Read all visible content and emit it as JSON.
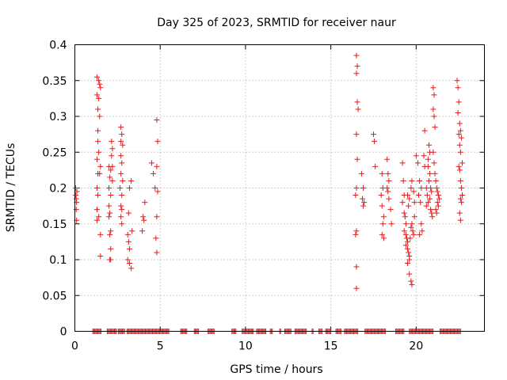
{
  "chart_data": {
    "type": "scatter",
    "title": "Day 325 of 2023, SRMTID for receiver naur",
    "xlabel": "GPS time / hours",
    "ylabel": "SRMTID / TECUs",
    "xlim": [
      0,
      24
    ],
    "ylim": [
      0,
      0.4
    ],
    "xticks": [
      0,
      5,
      10,
      15,
      20
    ],
    "xtick_labels": [
      "0",
      "5",
      "10",
      "15",
      "20"
    ],
    "yticks": [
      0,
      0.05,
      0.1,
      0.15,
      0.2,
      0.25,
      0.3,
      0.35,
      0.4
    ],
    "ytick_labels": [
      "0",
      "0.05",
      "0.1",
      "0.15",
      "0.2",
      "0.25",
      "0.3",
      "0.35",
      "0.4"
    ],
    "grid": true,
    "marker": "+",
    "color": "#e41a1c",
    "series": [
      {
        "name": "SRMTID",
        "points": [
          [
            0.05,
            0.19
          ],
          [
            0.05,
            0.2
          ],
          [
            0.08,
            0.185
          ],
          [
            0.08,
            0.17
          ],
          [
            0.1,
            0.155
          ],
          [
            0.1,
            0.18
          ],
          [
            0.12,
            0.195
          ],
          [
            1.3,
            0.355
          ],
          [
            1.3,
            0.33
          ],
          [
            1.35,
            0.31
          ],
          [
            1.35,
            0.28
          ],
          [
            1.4,
            0.35
          ],
          [
            1.45,
            0.345
          ],
          [
            1.5,
            0.34
          ],
          [
            1.4,
            0.325
          ],
          [
            1.45,
            0.3
          ],
          [
            1.35,
            0.265
          ],
          [
            1.4,
            0.25
          ],
          [
            1.3,
            0.24
          ],
          [
            1.35,
            0.22
          ],
          [
            1.3,
            0.2
          ],
          [
            1.35,
            0.19
          ],
          [
            1.3,
            0.17
          ],
          [
            1.4,
            0.16
          ],
          [
            1.3,
            0.155
          ],
          [
            1.5,
            0.135
          ],
          [
            1.5,
            0.105
          ],
          [
            1.45,
            0.22
          ],
          [
            1.5,
            0.23
          ],
          [
            2.0,
            0.23
          ],
          [
            2.05,
            0.215
          ],
          [
            2.0,
            0.2
          ],
          [
            2.1,
            0.19
          ],
          [
            2.0,
            0.175
          ],
          [
            2.05,
            0.165
          ],
          [
            2.0,
            0.16
          ],
          [
            2.1,
            0.14
          ],
          [
            2.05,
            0.135
          ],
          [
            2.1,
            0.115
          ],
          [
            2.05,
            0.1
          ],
          [
            2.1,
            0.1
          ],
          [
            2.15,
            0.265
          ],
          [
            2.2,
            0.255
          ],
          [
            2.15,
            0.245
          ],
          [
            2.2,
            0.23
          ],
          [
            2.1,
            0.225
          ],
          [
            2.2,
            0.21
          ],
          [
            2.7,
            0.285
          ],
          [
            2.75,
            0.275
          ],
          [
            2.7,
            0.265
          ],
          [
            2.8,
            0.26
          ],
          [
            2.7,
            0.245
          ],
          [
            2.75,
            0.235
          ],
          [
            2.7,
            0.22
          ],
          [
            2.8,
            0.21
          ],
          [
            2.65,
            0.2
          ],
          [
            2.75,
            0.19
          ],
          [
            2.7,
            0.175
          ],
          [
            2.75,
            0.17
          ],
          [
            2.7,
            0.16
          ],
          [
            2.75,
            0.15
          ],
          [
            3.1,
            0.135
          ],
          [
            3.15,
            0.125
          ],
          [
            3.2,
            0.115
          ],
          [
            3.1,
            0.1
          ],
          [
            3.2,
            0.095
          ],
          [
            3.3,
            0.088
          ],
          [
            3.15,
            0.165
          ],
          [
            3.2,
            0.2
          ],
          [
            3.3,
            0.21
          ],
          [
            3.35,
            0.14
          ],
          [
            4.0,
            0.16
          ],
          [
            4.05,
            0.155
          ],
          [
            3.95,
            0.14
          ],
          [
            4.1,
            0.18
          ],
          [
            4.5,
            0.235
          ],
          [
            4.6,
            0.22
          ],
          [
            4.7,
            0.2
          ],
          [
            4.75,
            0.13
          ],
          [
            4.8,
            0.23
          ],
          [
            4.8,
            0.16
          ],
          [
            4.85,
            0.195
          ],
          [
            4.8,
            0.11
          ],
          [
            4.8,
            0.295
          ],
          [
            4.85,
            0.265
          ],
          [
            16.5,
            0.385
          ],
          [
            16.55,
            0.37
          ],
          [
            16.5,
            0.36
          ],
          [
            16.55,
            0.32
          ],
          [
            16.6,
            0.31
          ],
          [
            16.5,
            0.275
          ],
          [
            16.55,
            0.24
          ],
          [
            16.5,
            0.2
          ],
          [
            16.45,
            0.19
          ],
          [
            16.5,
            0.14
          ],
          [
            16.45,
            0.135
          ],
          [
            16.5,
            0.09
          ],
          [
            16.5,
            0.06
          ],
          [
            16.8,
            0.22
          ],
          [
            16.9,
            0.2
          ],
          [
            16.95,
            0.18
          ],
          [
            16.85,
            0.185
          ],
          [
            16.9,
            0.175
          ],
          [
            17.6,
            0.23
          ],
          [
            17.5,
            0.275
          ],
          [
            17.55,
            0.265
          ],
          [
            18.0,
            0.22
          ],
          [
            18.05,
            0.2
          ],
          [
            17.95,
            0.19
          ],
          [
            18.0,
            0.175
          ],
          [
            18.1,
            0.16
          ],
          [
            18.05,
            0.15
          ],
          [
            18.0,
            0.135
          ],
          [
            18.1,
            0.13
          ],
          [
            18.3,
            0.24
          ],
          [
            18.35,
            0.22
          ],
          [
            18.4,
            0.21
          ],
          [
            18.3,
            0.2
          ],
          [
            18.35,
            0.195
          ],
          [
            18.4,
            0.185
          ],
          [
            18.5,
            0.17
          ],
          [
            18.55,
            0.15
          ],
          [
            19.2,
            0.235
          ],
          [
            19.25,
            0.21
          ],
          [
            19.3,
            0.19
          ],
          [
            19.2,
            0.18
          ],
          [
            19.3,
            0.165
          ],
          [
            19.35,
            0.16
          ],
          [
            19.4,
            0.15
          ],
          [
            19.3,
            0.14
          ],
          [
            19.4,
            0.135
          ],
          [
            19.45,
            0.13
          ],
          [
            19.5,
            0.125
          ],
          [
            19.4,
            0.12
          ],
          [
            19.5,
            0.115
          ],
          [
            19.55,
            0.11
          ],
          [
            19.6,
            0.105
          ],
          [
            19.5,
            0.095
          ],
          [
            19.6,
            0.08
          ],
          [
            19.7,
            0.07
          ],
          [
            19.75,
            0.065
          ],
          [
            19.6,
            0.1
          ],
          [
            19.65,
            0.13
          ],
          [
            19.7,
            0.145
          ],
          [
            19.75,
            0.15
          ],
          [
            19.8,
            0.14
          ],
          [
            19.85,
            0.135
          ],
          [
            19.9,
            0.16
          ],
          [
            19.55,
            0.175
          ],
          [
            19.6,
            0.185
          ],
          [
            19.5,
            0.19
          ],
          [
            19.7,
            0.2
          ],
          [
            19.75,
            0.21
          ],
          [
            19.85,
            0.195
          ],
          [
            19.9,
            0.18
          ],
          [
            20.0,
            0.245
          ],
          [
            20.1,
            0.235
          ],
          [
            20.2,
            0.21
          ],
          [
            20.3,
            0.2
          ],
          [
            20.15,
            0.19
          ],
          [
            20.25,
            0.18
          ],
          [
            20.3,
            0.15
          ],
          [
            20.35,
            0.14
          ],
          [
            20.2,
            0.135
          ],
          [
            20.5,
            0.28
          ],
          [
            20.45,
            0.245
          ],
          [
            20.5,
            0.23
          ],
          [
            20.7,
            0.24
          ],
          [
            20.75,
            0.26
          ],
          [
            20.8,
            0.25
          ],
          [
            20.7,
            0.23
          ],
          [
            20.8,
            0.22
          ],
          [
            20.75,
            0.21
          ],
          [
            20.85,
            0.2
          ],
          [
            20.9,
            0.195
          ],
          [
            20.8,
            0.185
          ],
          [
            20.7,
            0.18
          ],
          [
            20.85,
            0.17
          ],
          [
            20.9,
            0.165
          ],
          [
            20.95,
            0.16
          ],
          [
            20.6,
            0.175
          ],
          [
            20.65,
            0.19
          ],
          [
            20.6,
            0.2
          ],
          [
            21.0,
            0.34
          ],
          [
            21.05,
            0.33
          ],
          [
            21.0,
            0.31
          ],
          [
            21.05,
            0.3
          ],
          [
            21.1,
            0.285
          ],
          [
            21.0,
            0.25
          ],
          [
            21.05,
            0.235
          ],
          [
            21.1,
            0.22
          ],
          [
            21.15,
            0.21
          ],
          [
            21.2,
            0.2
          ],
          [
            21.25,
            0.195
          ],
          [
            21.3,
            0.19
          ],
          [
            21.35,
            0.185
          ],
          [
            21.25,
            0.18
          ],
          [
            21.3,
            0.175
          ],
          [
            21.15,
            0.17
          ],
          [
            21.2,
            0.165
          ],
          [
            22.4,
            0.35
          ],
          [
            22.45,
            0.34
          ],
          [
            22.5,
            0.32
          ],
          [
            22.45,
            0.305
          ],
          [
            22.55,
            0.29
          ],
          [
            22.6,
            0.28
          ],
          [
            22.5,
            0.275
          ],
          [
            22.65,
            0.27
          ],
          [
            22.55,
            0.26
          ],
          [
            22.6,
            0.25
          ],
          [
            22.7,
            0.235
          ],
          [
            22.5,
            0.23
          ],
          [
            22.55,
            0.225
          ],
          [
            22.6,
            0.21
          ],
          [
            22.65,
            0.2
          ],
          [
            22.7,
            0.19
          ],
          [
            22.6,
            0.185
          ],
          [
            22.65,
            0.18
          ],
          [
            22.55,
            0.165
          ],
          [
            22.6,
            0.155
          ]
        ],
        "zero_segments": [
          [
            1.05,
            1.55
          ],
          [
            1.9,
            2.45
          ],
          [
            2.55,
            2.95
          ],
          [
            3.05,
            5.55
          ],
          [
            6.2,
            6.6
          ],
          [
            7.0,
            7.25
          ],
          [
            7.8,
            8.2
          ],
          [
            9.2,
            9.45
          ],
          [
            9.8,
            10.5
          ],
          [
            10.65,
            11.2
          ],
          [
            11.45,
            11.6
          ],
          [
            12.0,
            12.1
          ],
          [
            12.3,
            12.7
          ],
          [
            12.9,
            13.6
          ],
          [
            13.9,
            14.0
          ],
          [
            14.3,
            14.5
          ],
          [
            14.7,
            15.0
          ],
          [
            15.3,
            15.6
          ],
          [
            15.8,
            16.6
          ],
          [
            17.0,
            18.2
          ],
          [
            18.8,
            19.3
          ],
          [
            19.6,
            21.0
          ],
          [
            21.4,
            22.6
          ]
        ]
      }
    ]
  }
}
